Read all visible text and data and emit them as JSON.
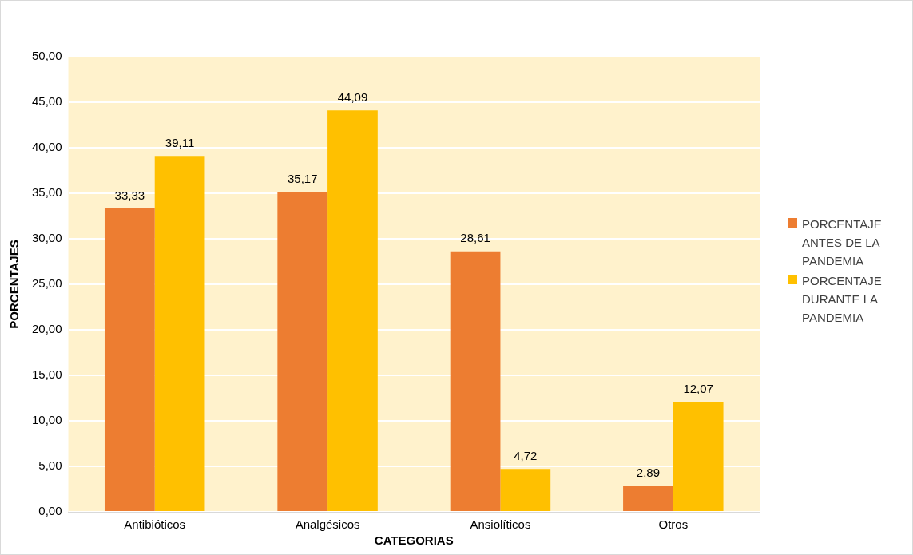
{
  "chart_data": {
    "type": "bar",
    "xlabel": "CATEGORIAS",
    "ylabel": "PORCENTAJES",
    "categories": [
      "Antibióticos",
      "Analgésicos",
      "Ansiolíticos",
      "Otros"
    ],
    "series": [
      {
        "name": "PORCENTAJE ANTES DE LA PANDEMIA",
        "color": "#ed7d31",
        "values": [
          33.33,
          35.17,
          28.61,
          2.89
        ],
        "value_labels": [
          "33,33",
          "35,17",
          "28,61",
          "2,89"
        ]
      },
      {
        "name": "PORCENTAJE DURANTE LA PANDEMIA",
        "color": "#ffc000",
        "values": [
          39.11,
          44.09,
          4.72,
          12.07
        ],
        "value_labels": [
          "39,11",
          "44,09",
          "4,72",
          "12,07"
        ]
      }
    ],
    "ylim": [
      0,
      50
    ],
    "yticks": [
      {
        "value": 0,
        "label": "0,00"
      },
      {
        "value": 5,
        "label": "5,00"
      },
      {
        "value": 10,
        "label": "10,00"
      },
      {
        "value": 15,
        "label": "15,00"
      },
      {
        "value": 20,
        "label": "20,00"
      },
      {
        "value": 25,
        "label": "25,00"
      },
      {
        "value": 30,
        "label": "30,00"
      },
      {
        "value": 35,
        "label": "35,00"
      },
      {
        "value": 40,
        "label": "40,00"
      },
      {
        "value": 45,
        "label": "45,00"
      },
      {
        "value": 50,
        "label": "50,00"
      }
    ],
    "grid": "y",
    "legend": "right"
  }
}
